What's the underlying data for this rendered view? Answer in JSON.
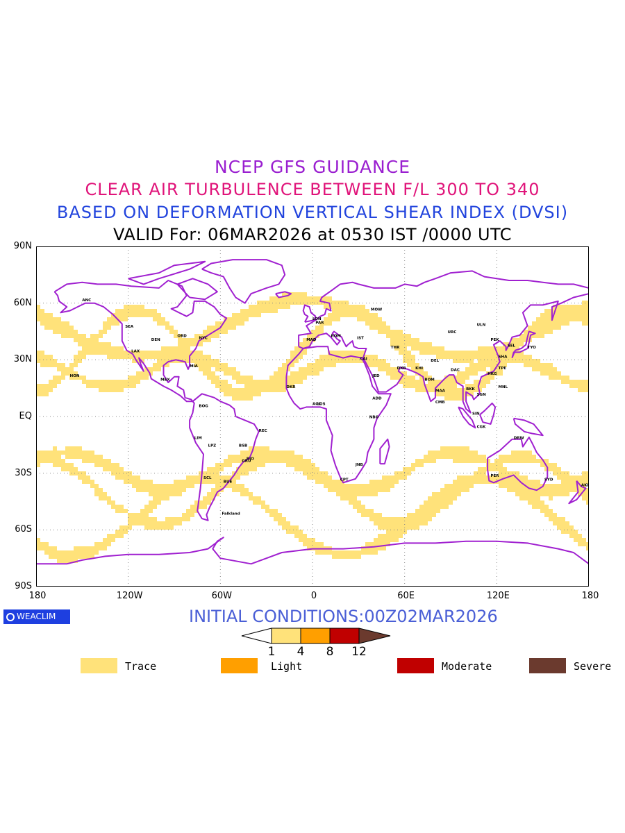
{
  "titles": {
    "line1": "NCEP GFS GUIDANCE",
    "line2": "CLEAR AIR TURBULENCE BETWEEN F/L 300 TO 340",
    "line3": "BASED ON DEFORMATION VERTICAL SHEAR INDEX (DVSI)",
    "line4": "VALID For: 06MAR2026 at 0530 IST /0000 UTC"
  },
  "colors": {
    "title1": "#9a1fd0",
    "title2": "#e0147a",
    "title3": "#2244dd",
    "trace": "#ffe27a",
    "light": "#ff9f00",
    "moderate": "#c00000",
    "severe": "#6b3a2e",
    "coast": "#a020d0",
    "ocean": "#ffffff"
  },
  "axes": {
    "y_ticks": [
      "90N",
      "60N",
      "30N",
      "EQ",
      "30S",
      "60S",
      "90S"
    ],
    "x_ticks": [
      "180",
      "120W",
      "60W",
      "0",
      "60E",
      "120E",
      "180"
    ]
  },
  "logo": "WEACLIM",
  "initial_conditions": "INITIAL CONDITIONS:00Z02MAR2026",
  "colorbar": {
    "levels": [
      "1",
      "4",
      "8",
      "12"
    ]
  },
  "legend": [
    "Trace",
    "Light",
    "Moderate",
    "Severe"
  ],
  "stations": [
    "ANC",
    "HON",
    "SEA",
    "LAX",
    "DEN",
    "ORD",
    "NYC",
    "MIA",
    "MEX",
    "BOG",
    "LIM",
    "SCL",
    "BUE",
    "RIO",
    "GRU",
    "BSB",
    "LPZ",
    "REC",
    "LON",
    "PAR",
    "MAD",
    "ROM",
    "CAI",
    "JED",
    "DXB",
    "KHI",
    "DEL",
    "BOM",
    "MAA",
    "CMB",
    "DAC",
    "BKK",
    "SGN",
    "HKG",
    "TPE",
    "SEL",
    "TYO",
    "PEK",
    "SHA",
    "MNL",
    "SIN",
    "CGK",
    "DRW",
    "PER",
    "SYD",
    "AKL",
    "NBO",
    "JNB",
    "CPT",
    "LOS",
    "ACC",
    "ADD",
    "MOW",
    "IST",
    "THR",
    "URC",
    "ULN",
    "DKR",
    "Falkland"
  ]
}
